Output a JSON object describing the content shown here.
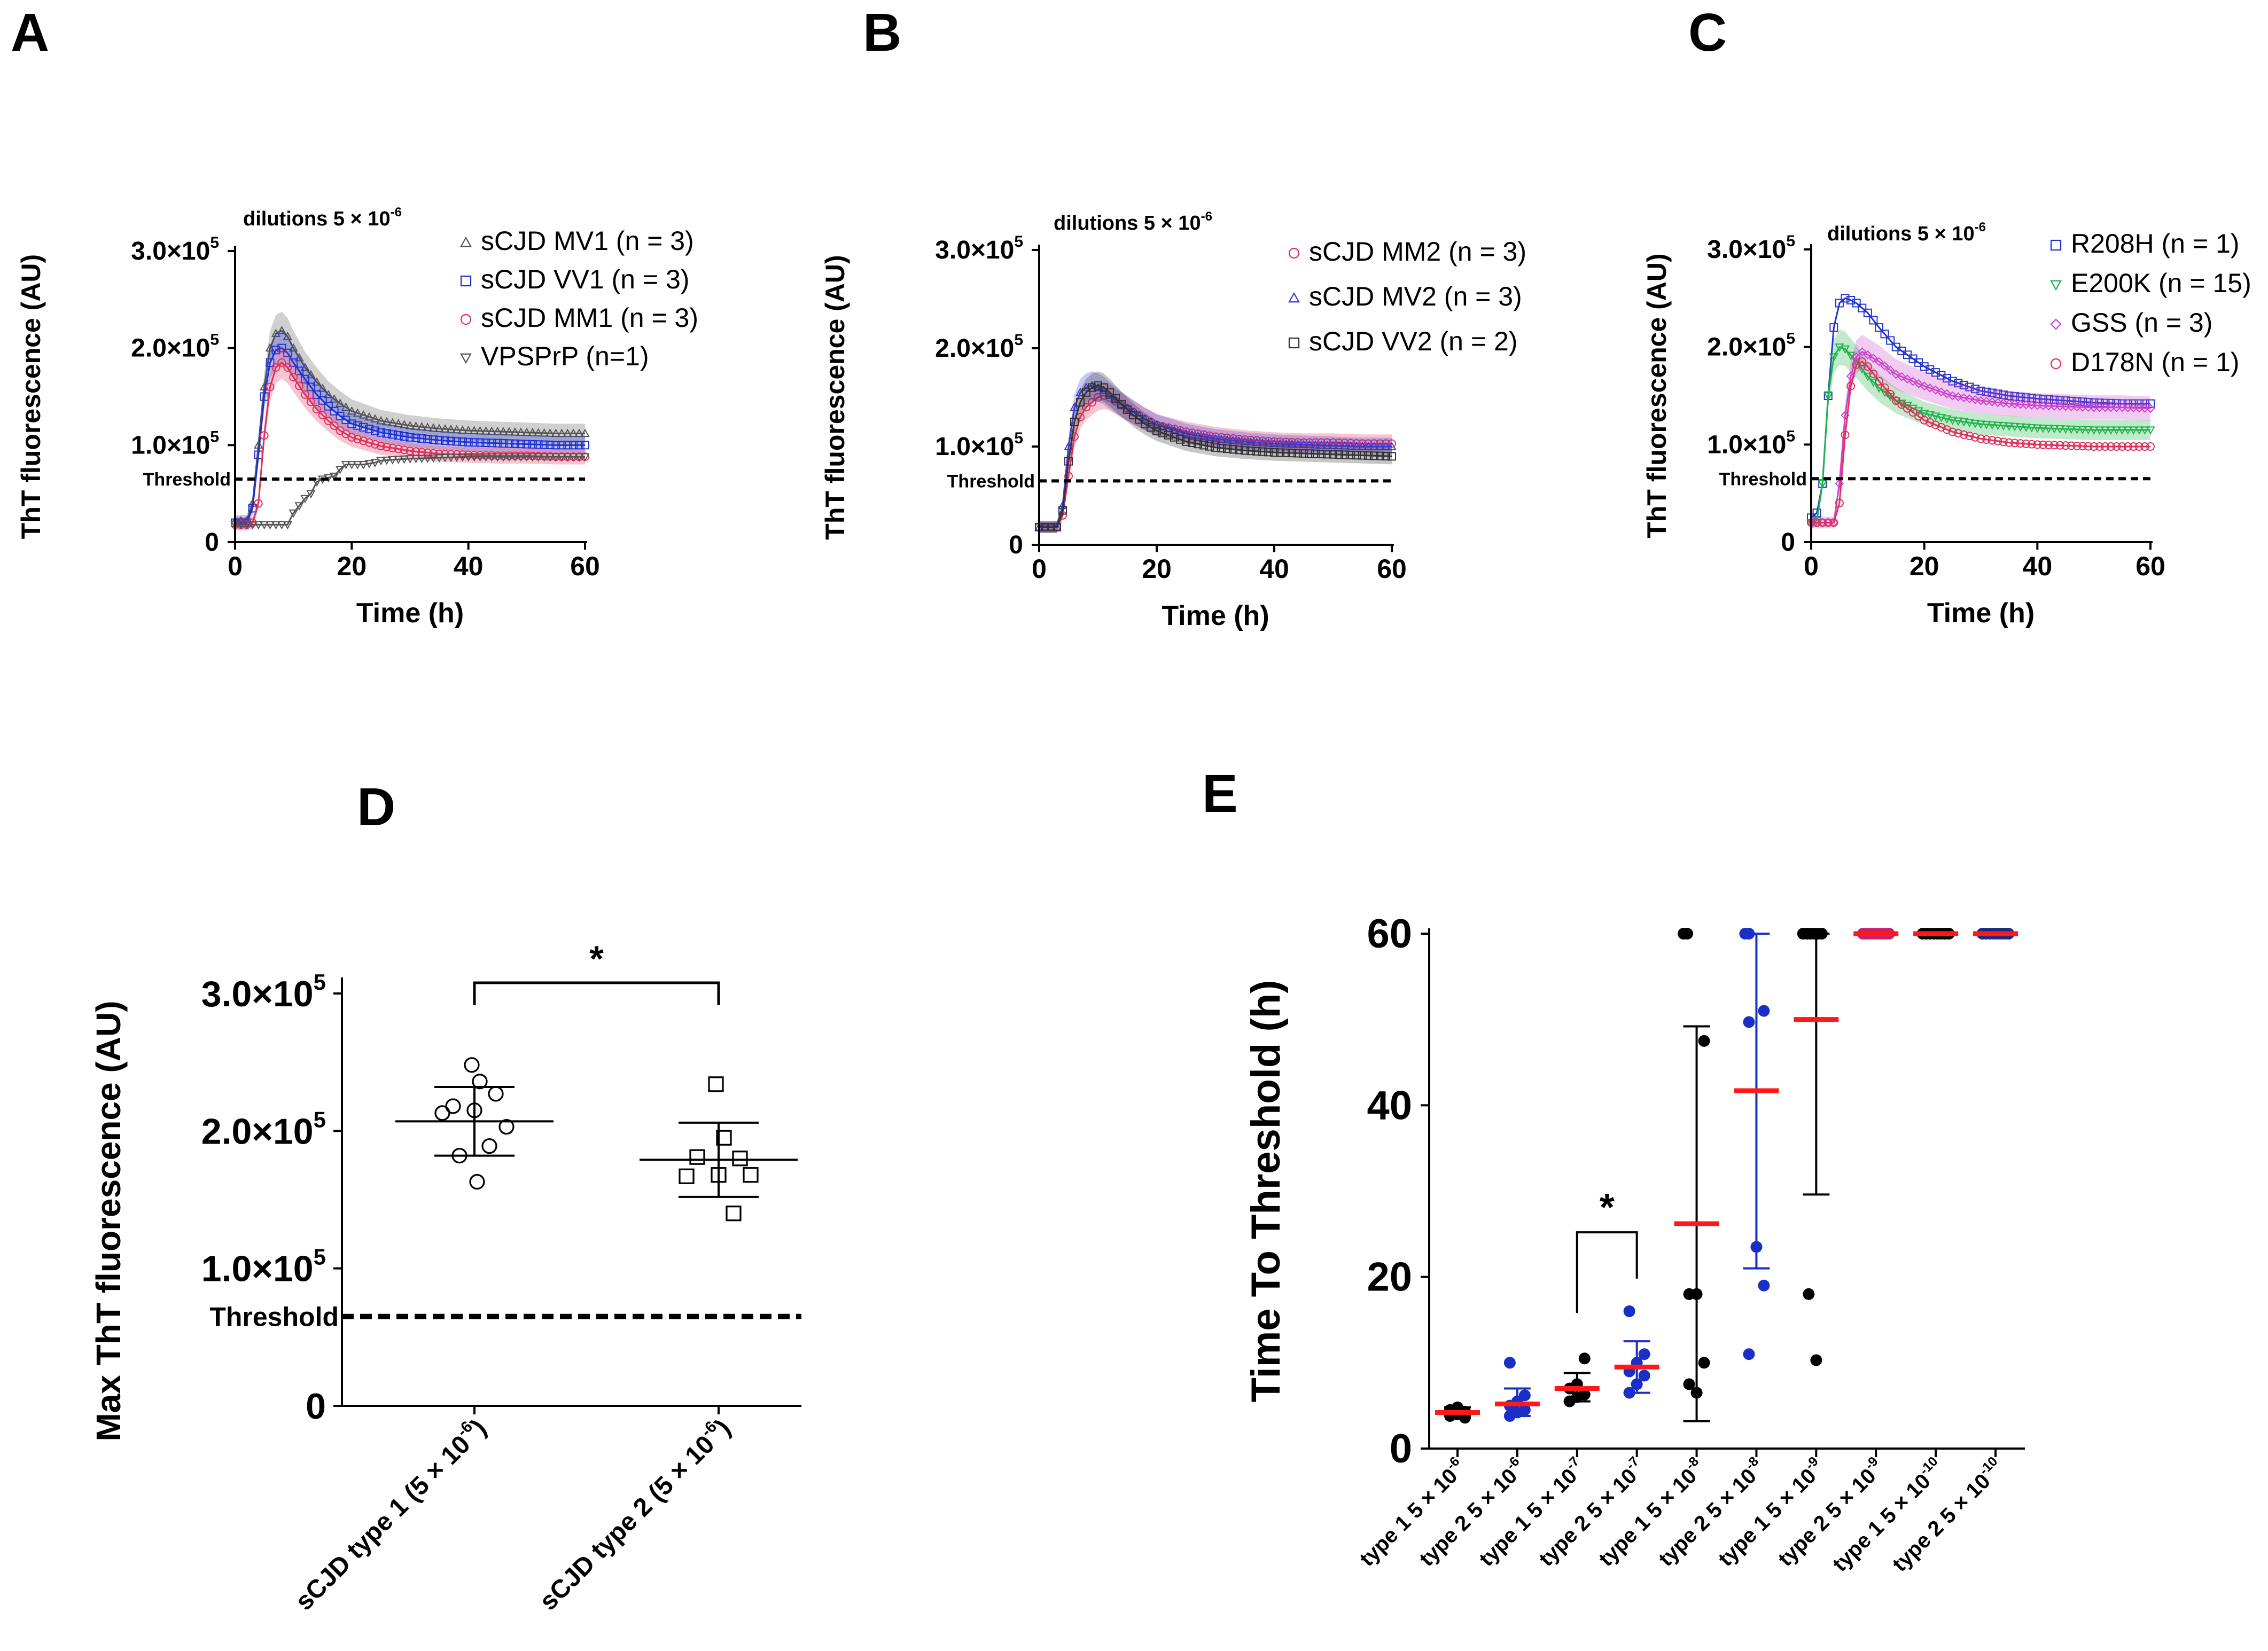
{
  "figure": {
    "panel_letters": [
      "A",
      "B",
      "C",
      "D",
      "E"
    ]
  },
  "chart_data": [
    {
      "panel": "A",
      "type": "line",
      "annotation": "dilutions 5 × 10",
      "annotation_exp": "-6",
      "xlabel": "Time (h)",
      "ylabel": "ThT fluorescence (AU)",
      "xlim": [
        0,
        60
      ],
      "ylim": [
        0,
        300000
      ],
      "xticks": [
        0,
        20,
        40,
        60
      ],
      "yticks": [
        {
          "value": 0,
          "mant": "0",
          "exp": ""
        },
        {
          "value": 100000,
          "mant": "1.0×10",
          "exp": "5"
        },
        {
          "value": 200000,
          "mant": "2.0×10",
          "exp": "5"
        },
        {
          "value": 300000,
          "mant": "3.0×10",
          "exp": "5"
        }
      ],
      "threshold": {
        "label": "Threshold",
        "value": 65000
      },
      "series": [
        {
          "name": "sCJD MV1 (n = 3)",
          "color": "#555555",
          "marker": "triangle",
          "band": true,
          "x": [
            0,
            2,
            3,
            4,
            5,
            6,
            7,
            8,
            9,
            10,
            12,
            14,
            16,
            18,
            20,
            25,
            30,
            35,
            40,
            45,
            50,
            55,
            60
          ],
          "y": [
            22000,
            22000,
            40000,
            100000,
            160000,
            200000,
            215000,
            218000,
            212000,
            200000,
            180000,
            165000,
            152000,
            143000,
            135000,
            125000,
            120000,
            117000,
            115000,
            114000,
            113000,
            112000,
            112000
          ]
        },
        {
          "name": "sCJD VV1 (n = 3)",
          "color": "#1f2fd6",
          "marker": "square",
          "band": true,
          "x": [
            0,
            2,
            3,
            4,
            5,
            6,
            7,
            8,
            9,
            10,
            12,
            14,
            16,
            18,
            20,
            25,
            30,
            35,
            40,
            45,
            50,
            55,
            60
          ],
          "y": [
            20000,
            20000,
            35000,
            90000,
            150000,
            185000,
            198000,
            200000,
            195000,
            185000,
            168000,
            152000,
            140000,
            130000,
            122000,
            113000,
            108000,
            105000,
            103000,
            102000,
            101000,
            100000,
            100000
          ]
        },
        {
          "name": "sCJD MM1 (n = 3)",
          "color": "#e0305a",
          "marker": "circle",
          "band": true,
          "x": [
            0,
            2,
            3,
            4,
            5,
            6,
            7,
            8,
            9,
            10,
            12,
            14,
            16,
            18,
            20,
            25,
            30,
            35,
            40,
            45,
            50,
            55,
            60
          ],
          "y": [
            18000,
            18000,
            20000,
            40000,
            110000,
            160000,
            180000,
            185000,
            180000,
            170000,
            152000,
            137000,
            125000,
            115000,
            108000,
            99000,
            94000,
            91000,
            90000,
            89000,
            89000,
            88000,
            88000
          ]
        },
        {
          "name": "VPSPrP (n=1)",
          "color": "#555555",
          "marker": "invtriangle",
          "band": false,
          "x": [
            0,
            5,
            9,
            10,
            12,
            13,
            14,
            15,
            17,
            18,
            19,
            22,
            24,
            25,
            27,
            30,
            35,
            40,
            45,
            50,
            55,
            60
          ],
          "y": [
            18000,
            18000,
            18000,
            30000,
            45000,
            50000,
            62000,
            65000,
            68000,
            75000,
            80000,
            80000,
            82000,
            84000,
            85000,
            86000,
            87000,
            88000,
            88000,
            88000,
            88000,
            88000
          ]
        }
      ]
    },
    {
      "panel": "B",
      "type": "line",
      "annotation": "dilutions 5 × 10",
      "annotation_exp": "-6",
      "xlabel": "Time (h)",
      "ylabel": "ThT fluorescence (AU)",
      "xlim": [
        0,
        60
      ],
      "ylim": [
        0,
        300000
      ],
      "xticks": [
        0,
        20,
        40,
        60
      ],
      "yticks": [
        {
          "value": 0,
          "mant": "0",
          "exp": ""
        },
        {
          "value": 100000,
          "mant": "1.0×10",
          "exp": "5"
        },
        {
          "value": 200000,
          "mant": "2.0×10",
          "exp": "5"
        },
        {
          "value": 300000,
          "mant": "3.0×10",
          "exp": "5"
        }
      ],
      "threshold": {
        "label": "Threshold",
        "value": 65000
      },
      "series": [
        {
          "name": "sCJD MM2 (n = 3)",
          "color": "#e0305a",
          "marker": "circle",
          "band": true,
          "x": [
            0,
            3,
            4,
            5,
            6,
            7,
            8,
            9,
            10,
            11,
            12,
            14,
            16,
            18,
            20,
            25,
            30,
            35,
            40,
            45,
            50,
            55,
            60
          ],
          "y": [
            18000,
            18000,
            30000,
            70000,
            110000,
            130000,
            140000,
            145000,
            150000,
            152000,
            150000,
            142000,
            135000,
            128000,
            122000,
            115000,
            110000,
            107000,
            105000,
            104000,
            104000,
            103000,
            103000
          ]
        },
        {
          "name": "sCJD MV2 (n = 3)",
          "color": "#3a3ad6",
          "marker": "triangle",
          "band": true,
          "x": [
            0,
            3,
            4,
            5,
            6,
            7,
            8,
            9,
            10,
            11,
            12,
            14,
            16,
            18,
            20,
            25,
            30,
            35,
            40,
            45,
            50,
            55,
            60
          ],
          "y": [
            18000,
            18000,
            40000,
            100000,
            140000,
            155000,
            160000,
            162000,
            160000,
            157000,
            152000,
            143000,
            135000,
            128000,
            122000,
            113000,
            108000,
            105000,
            103000,
            102000,
            101000,
            100000,
            100000
          ]
        },
        {
          "name": "sCJD VV2 (n = 2)",
          "color": "#333333",
          "marker": "square",
          "band": true,
          "x": [
            0,
            3,
            4,
            5,
            6,
            7,
            8,
            9,
            10,
            11,
            12,
            14,
            16,
            18,
            20,
            25,
            30,
            35,
            40,
            45,
            50,
            55,
            60
          ],
          "y": [
            18000,
            18000,
            35000,
            85000,
            125000,
            145000,
            155000,
            160000,
            162000,
            160000,
            155000,
            143000,
            132000,
            123000,
            116000,
            105000,
            99000,
            96000,
            94000,
            93000,
            92000,
            91000,
            90000
          ]
        }
      ]
    },
    {
      "panel": "C",
      "type": "line",
      "annotation": "dilutions 5 × 10",
      "annotation_exp": "-6",
      "xlabel": "Time (h)",
      "ylabel": "ThT fluorescence (AU)",
      "xlim": [
        0,
        60
      ],
      "ylim": [
        0,
        300000
      ],
      "xticks": [
        0,
        20,
        40,
        60
      ],
      "yticks": [
        {
          "value": 0,
          "mant": "0",
          "exp": ""
        },
        {
          "value": 100000,
          "mant": "1.0×10",
          "exp": "5"
        },
        {
          "value": 200000,
          "mant": "2.0×10",
          "exp": "5"
        },
        {
          "value": 300000,
          "mant": "3.0×10",
          "exp": "5"
        }
      ],
      "threshold": {
        "label": "Threshold",
        "value": 65000
      },
      "series": [
        {
          "name": "R208H (n = 1)",
          "color": "#2233cc",
          "marker": "square",
          "band": false,
          "x": [
            0,
            1,
            2,
            3,
            4,
            5,
            6,
            7,
            8,
            10,
            12,
            15,
            20,
            25,
            30,
            35,
            40,
            45,
            50,
            55,
            60
          ],
          "y": [
            25000,
            30000,
            60000,
            150000,
            220000,
            245000,
            250000,
            248000,
            245000,
            235000,
            220000,
            200000,
            180000,
            165000,
            155000,
            150000,
            147000,
            145000,
            143000,
            142000,
            142000
          ]
        },
        {
          "name": "E200K (n = 15)",
          "color": "#22b34a",
          "marker": "invtriangle",
          "band": true,
          "x": [
            0,
            1,
            2,
            3,
            4,
            5,
            6,
            8,
            10,
            12,
            15,
            20,
            25,
            30,
            35,
            40,
            45,
            50,
            55,
            60
          ],
          "y": [
            20000,
            22000,
            60000,
            150000,
            190000,
            200000,
            198000,
            185000,
            170000,
            158000,
            145000,
            132000,
            125000,
            121000,
            119000,
            117000,
            116000,
            115000,
            115000,
            115000
          ]
        },
        {
          "name": "GSS (n = 3)",
          "color": "#cc44cc",
          "marker": "diamond",
          "band": true,
          "x": [
            0,
            4,
            5,
            6,
            7,
            8,
            9,
            10,
            12,
            15,
            20,
            25,
            30,
            35,
            40,
            45,
            50,
            55,
            60
          ],
          "y": [
            20000,
            20000,
            60000,
            130000,
            170000,
            190000,
            195000,
            192000,
            185000,
            172000,
            160000,
            150000,
            145000,
            142000,
            140000,
            139000,
            138000,
            138000,
            137000
          ]
        },
        {
          "name": "D178N (n = 1)",
          "color": "#e0305a",
          "marker": "circle",
          "band": false,
          "x": [
            0,
            4,
            5,
            6,
            7,
            8,
            9,
            10,
            12,
            15,
            20,
            25,
            30,
            35,
            40,
            45,
            50,
            55,
            60
          ],
          "y": [
            20000,
            20000,
            40000,
            110000,
            160000,
            182000,
            185000,
            180000,
            165000,
            145000,
            125000,
            113000,
            106000,
            102000,
            100000,
            99000,
            98000,
            98000,
            98000
          ]
        }
      ]
    },
    {
      "panel": "D",
      "type": "scatter",
      "ylabel": "Max ThT fluorescence (AU)",
      "ylim": [
        0,
        300000
      ],
      "yticks": [
        {
          "value": 0,
          "mant": "0",
          "exp": ""
        },
        {
          "value": 100000,
          "mant": "1.0×10",
          "exp": "5"
        },
        {
          "value": 200000,
          "mant": "2.0×10",
          "exp": "5"
        },
        {
          "value": 300000,
          "mant": "3.0×10",
          "exp": "5"
        }
      ],
      "threshold": {
        "label": "Threshold",
        "value": 65000
      },
      "significance": "*",
      "categories": [
        {
          "label": "sCJD type 1 (5 × 10",
          "exp": "-6",
          "close": ")",
          "marker": "circle",
          "mean": 207000,
          "sd_low": 182000,
          "sd_high": 232000,
          "values": [
            248000,
            236000,
            227000,
            218000,
            215000,
            213000,
            203000,
            189000,
            182000,
            163000
          ]
        },
        {
          "label": "sCJD type 2 (5 × 10",
          "exp": "-6",
          "close": ")",
          "marker": "square",
          "mean": 179000,
          "sd_low": 152000,
          "sd_high": 206000,
          "values": [
            234000,
            195000,
            180000,
            181000,
            168000,
            167000,
            168000,
            140000
          ]
        }
      ]
    },
    {
      "panel": "E",
      "type": "scatter",
      "ylabel": "Time To Threshold (h)",
      "ylim": [
        0,
        60
      ],
      "yticks": [
        0,
        20,
        40,
        60
      ],
      "significance": "*",
      "categories": [
        {
          "label": "type 1 5 × 10",
          "exp": "-6",
          "color": "#000000",
          "bar_color": "#000000",
          "mean": 4.2,
          "sd_low": 3.8,
          "sd_high": 4.8,
          "values": [
            3.8,
            4.0,
            4.3,
            4.5,
            4.8,
            3.6,
            4.1
          ]
        },
        {
          "label": "type 2 5 × 10",
          "exp": "-6",
          "color": "#1a2ec8",
          "bar_color": "#1a2ec8",
          "mean": 5.2,
          "sd_low": 3.8,
          "sd_high": 7.0,
          "values": [
            3.8,
            4.2,
            4.5,
            5.0,
            5.5,
            6.2,
            10.0
          ]
        },
        {
          "label": "type 1 5 × 10",
          "exp": "-7",
          "color": "#000000",
          "bar_color": "#000000",
          "mean": 7.0,
          "sd_low": 5.5,
          "sd_high": 8.8,
          "values": [
            5.5,
            6.0,
            6.3,
            7.0,
            7.5,
            10.5
          ]
        },
        {
          "label": "type 2 5 × 10",
          "exp": "-7",
          "color": "#1a2ec8",
          "bar_color": "#1a2ec8",
          "mean": 9.5,
          "sd_low": 6.5,
          "sd_high": 12.5,
          "values": [
            6.5,
            7.5,
            8.5,
            9.0,
            10.0,
            11.0,
            16.0
          ]
        },
        {
          "label": "type 1 5 × 10",
          "exp": "-8",
          "color": "#000000",
          "bar_color": "#000000",
          "mean": 26.2,
          "sd_low": 3.2,
          "sd_high": 49.2,
          "values": [
            60,
            60,
            47.5,
            18.0,
            18.0,
            10.0,
            7.5,
            6.5
          ]
        },
        {
          "label": "type 2 5 × 10",
          "exp": "-8",
          "color": "#1a2ec8",
          "bar_color": "#1a2ec8",
          "mean": 41.7,
          "sd_low": 21.0,
          "sd_high": 60.0,
          "values": [
            60,
            60,
            51.0,
            49.7,
            23.5,
            19.0,
            11.0
          ]
        },
        {
          "label": "type 1 5 × 10",
          "exp": "-9",
          "color": "#000000",
          "bar_color": "#000000",
          "mean": 50.0,
          "sd_low": 29.6,
          "sd_high": 60.0,
          "values": [
            60,
            60,
            60,
            60,
            60,
            60,
            18.0,
            10.3
          ]
        },
        {
          "label": "type 2 5 × 10",
          "exp": "-9",
          "color": "#cc1f6a",
          "bar_color": "#1a2ec8",
          "mean": 60.0,
          "sd_low": 60.0,
          "sd_high": 60.0,
          "values": [
            60,
            60,
            60,
            60,
            60,
            60,
            60,
            60
          ]
        },
        {
          "label": "type 1 5 × 10",
          "exp": "-10",
          "color": "#000000",
          "bar_color": "#000000",
          "mean": 60.0,
          "sd_low": 60.0,
          "sd_high": 60.0,
          "values": [
            60,
            60,
            60,
            60,
            60,
            60,
            60,
            60
          ]
        },
        {
          "label": "type 2 5 × 10",
          "exp": "-10",
          "color": "#1a2a80",
          "bar_color": "#1a2ec8",
          "mean": 60.0,
          "sd_low": 60.0,
          "sd_high": 60.0,
          "values": [
            60,
            60,
            60,
            60,
            60,
            60,
            60,
            60
          ]
        }
      ]
    }
  ]
}
